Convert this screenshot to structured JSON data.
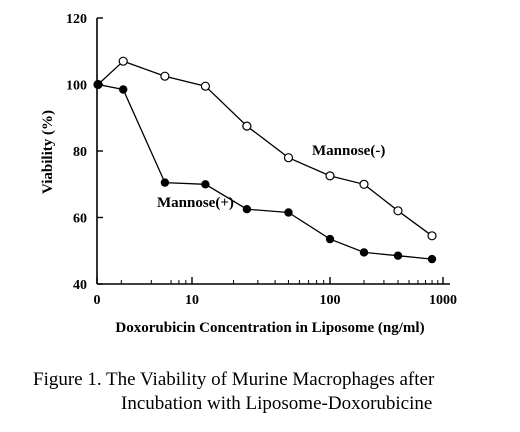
{
  "chart_data": {
    "type": "line",
    "xlabel": "Doxorubicin Concentration in Liposome (ng/ml)",
    "ylabel": "Viability (%)",
    "x_scale": "log",
    "ylim": [
      40,
      120
    ],
    "yticks": [
      40,
      60,
      80,
      100,
      120
    ],
    "xticks": [
      {
        "value": 0,
        "label": "0"
      },
      {
        "value": 10,
        "label": "10"
      },
      {
        "value": 100,
        "label": "100"
      },
      {
        "value": 1000,
        "label": "1000"
      }
    ],
    "grid": false,
    "series": [
      {
        "name": "Mannose(-)",
        "marker": "open-circle",
        "x": [
          0,
          3.1,
          6.3,
          12.5,
          25,
          50,
          100,
          200,
          400,
          800
        ],
        "y": [
          100,
          107,
          102.5,
          99.5,
          87.5,
          78,
          72.5,
          70,
          62,
          54.5
        ]
      },
      {
        "name": "Mannose(+)",
        "marker": "filled-circle",
        "x": [
          0,
          3.1,
          6.3,
          12.5,
          25,
          50,
          100,
          200,
          400,
          800
        ],
        "y": [
          100,
          98.5,
          70.5,
          70,
          62.5,
          61.5,
          53.5,
          49.5,
          48.5,
          47.5
        ]
      }
    ]
  },
  "caption": {
    "line1": "Figure 1.  The Viability of Murine Macrophages after",
    "line2": "Incubation with Liposome-Doxorubicine"
  }
}
